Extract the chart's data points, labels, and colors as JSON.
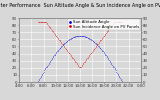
{
  "title": "Solar PV/Inverter Performance  Sun Altitude Angle & Sun Incidence Angle on PV Panels",
  "title_fontsize": 3.5,
  "bg_color": "#d8d8d8",
  "plot_bg_color": "#d8d8d8",
  "grid_color": "#ffffff",
  "legend_labels": [
    "Sun Altitude Angle",
    "Sun Incidence Angle on PV Panels"
  ],
  "altitude_color": "#0000dd",
  "incidence_color": "#dd0000",
  "dot_size": 0.8,
  "xlim": [
    0,
    100
  ],
  "ylim": [
    0,
    90
  ],
  "yticks": [
    0,
    10,
    20,
    30,
    40,
    50,
    60,
    70,
    80,
    90
  ],
  "xtick_positions": [
    0,
    10,
    20,
    30,
    40,
    50,
    60,
    70,
    80,
    90,
    100
  ],
  "xtick_labels": [
    "4:00",
    "6:00",
    "8:00",
    "10:00",
    "12:00",
    "14:00",
    "16:00",
    "18:00",
    "20:00",
    "22:00",
    "0:00"
  ],
  "tick_fontsize": 2.8,
  "legend_fontsize": 2.8
}
